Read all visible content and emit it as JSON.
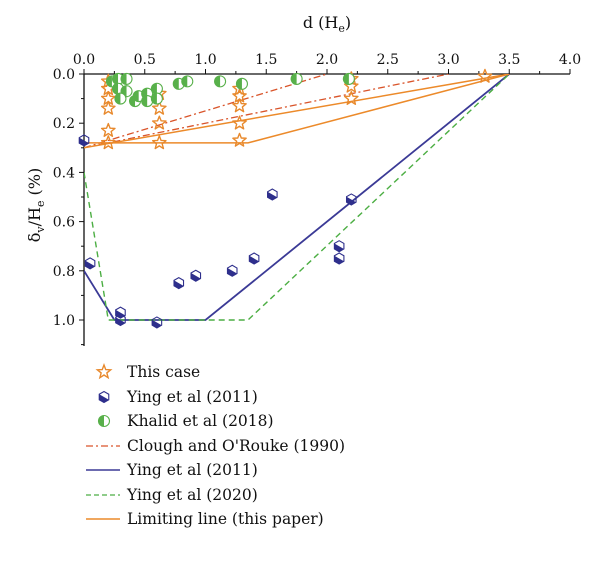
{
  "chart_data": {
    "type": "scatter",
    "xlabel_main": "d (H",
    "xlabel_sub": "e",
    "xlabel_end": ")",
    "ylabel_a": "δ",
    "ylabel_sub1": "v",
    "ylabel_b": "/H",
    "ylabel_sub2": "e",
    "ylabel_c": " (%)",
    "xlim": [
      0,
      4
    ],
    "ylim": [
      0,
      1.12
    ],
    "y_inverted": true,
    "x_axis_position": "top",
    "x_ticks": [
      "0.0",
      "0.5",
      "1.0",
      "1.5",
      "2.0",
      "2.5",
      "3.0",
      "3.5",
      "4.0"
    ],
    "y_ticks": [
      "0.0",
      "0.2",
      "0.4",
      "0.6",
      "0.8",
      "1.0"
    ],
    "legend_position": "bottom",
    "colors": {
      "this_case": "#e8892c",
      "ying2011": "#2e2f8c",
      "khalid": "#58b04a",
      "clough": "#d9542a",
      "ying2011_line": "#3b3a96",
      "ying2020": "#4cae43",
      "limiting": "#ec8a2a"
    },
    "legend": [
      {
        "label": "This case",
        "kind": "star"
      },
      {
        "label": "Ying et al (2011)",
        "kind": "hexagon"
      },
      {
        "label": "Khalid et al (2018)",
        "kind": "half-circle"
      },
      {
        "label": "Clough and O'Rouke (1990)",
        "kind": "dashdot"
      },
      {
        "label": "Ying et al (2011)",
        "kind": "solid-navy"
      },
      {
        "label": "Ying et al (2020)",
        "kind": "dashed-green"
      },
      {
        "label": "Limiting line (this paper)",
        "kind": "solid-orange"
      }
    ],
    "series": [
      {
        "name": "This case",
        "marker": "star",
        "points": [
          [
            0.2,
            0.03
          ],
          [
            0.2,
            0.06
          ],
          [
            0.2,
            0.1
          ],
          [
            0.2,
            0.14
          ],
          [
            0.2,
            0.23
          ],
          [
            0.2,
            0.28
          ],
          [
            0.62,
            0.08
          ],
          [
            0.62,
            0.14
          ],
          [
            0.62,
            0.2
          ],
          [
            0.62,
            0.28
          ],
          [
            1.28,
            0.06
          ],
          [
            1.28,
            0.09
          ],
          [
            1.28,
            0.13
          ],
          [
            1.28,
            0.2
          ],
          [
            1.28,
            0.27
          ],
          [
            2.2,
            0.02
          ],
          [
            2.2,
            0.05
          ],
          [
            2.2,
            0.1
          ],
          [
            3.3,
            0.01
          ]
        ]
      },
      {
        "name": "Ying et al (2011)",
        "marker": "hexagon",
        "points": [
          [
            0,
            0.27
          ],
          [
            0.05,
            0.77
          ],
          [
            0.3,
            0.97
          ],
          [
            0.3,
            1.0
          ],
          [
            0.6,
            1.01
          ],
          [
            0.78,
            0.85
          ],
          [
            0.92,
            0.82
          ],
          [
            1.22,
            0.8
          ],
          [
            1.4,
            0.75
          ],
          [
            1.55,
            0.49
          ],
          [
            2.1,
            0.7
          ],
          [
            2.1,
            0.75
          ],
          [
            2.2,
            0.51
          ]
        ]
      },
      {
        "name": "Khalid et al (2018)",
        "marker": "half-circle",
        "points": [
          [
            0.23,
            0.03
          ],
          [
            0.28,
            0.02
          ],
          [
            0.35,
            0.02
          ],
          [
            0.28,
            0.06
          ],
          [
            0.35,
            0.07
          ],
          [
            0.3,
            0.1
          ],
          [
            0.42,
            0.11
          ],
          [
            0.45,
            0.09
          ],
          [
            0.52,
            0.08
          ],
          [
            0.52,
            0.11
          ],
          [
            0.6,
            0.06
          ],
          [
            0.6,
            0.1
          ],
          [
            0.78,
            0.04
          ],
          [
            0.85,
            0.03
          ],
          [
            1.12,
            0.03
          ],
          [
            1.3,
            0.04
          ],
          [
            1.75,
            0.02
          ],
          [
            2.18,
            0.02
          ]
        ]
      }
    ],
    "lines": [
      {
        "name": "Clough and O'Rouke (1990) a",
        "style": "dashdot",
        "points": [
          [
            0,
            0.3
          ],
          [
            2.0,
            0
          ]
        ]
      },
      {
        "name": "Clough and O'Rouke (1990) b",
        "style": "dashdot",
        "points": [
          [
            0,
            0.3
          ],
          [
            3.0,
            0
          ]
        ]
      },
      {
        "name": "Ying et al (2011)",
        "style": "solid-navy",
        "points": [
          [
            0,
            0.8
          ],
          [
            0.25,
            1.0
          ],
          [
            1.0,
            1.0
          ],
          [
            3.5,
            0
          ]
        ]
      },
      {
        "name": "Ying et al (2020)",
        "style": "dashed-green",
        "points": [
          [
            0,
            0.4
          ],
          [
            0.2,
            1.0
          ],
          [
            1.35,
            1.0
          ],
          [
            3.5,
            0
          ]
        ]
      },
      {
        "name": "Limiting line (this paper) a",
        "style": "solid-orange",
        "points": [
          [
            0,
            0.28
          ],
          [
            1.35,
            0.28
          ],
          [
            3.5,
            0
          ]
        ]
      },
      {
        "name": "Limiting line (this paper) b",
        "style": "solid-orange",
        "points": [
          [
            0,
            0.3
          ],
          [
            3.5,
            0
          ]
        ]
      }
    ]
  }
}
